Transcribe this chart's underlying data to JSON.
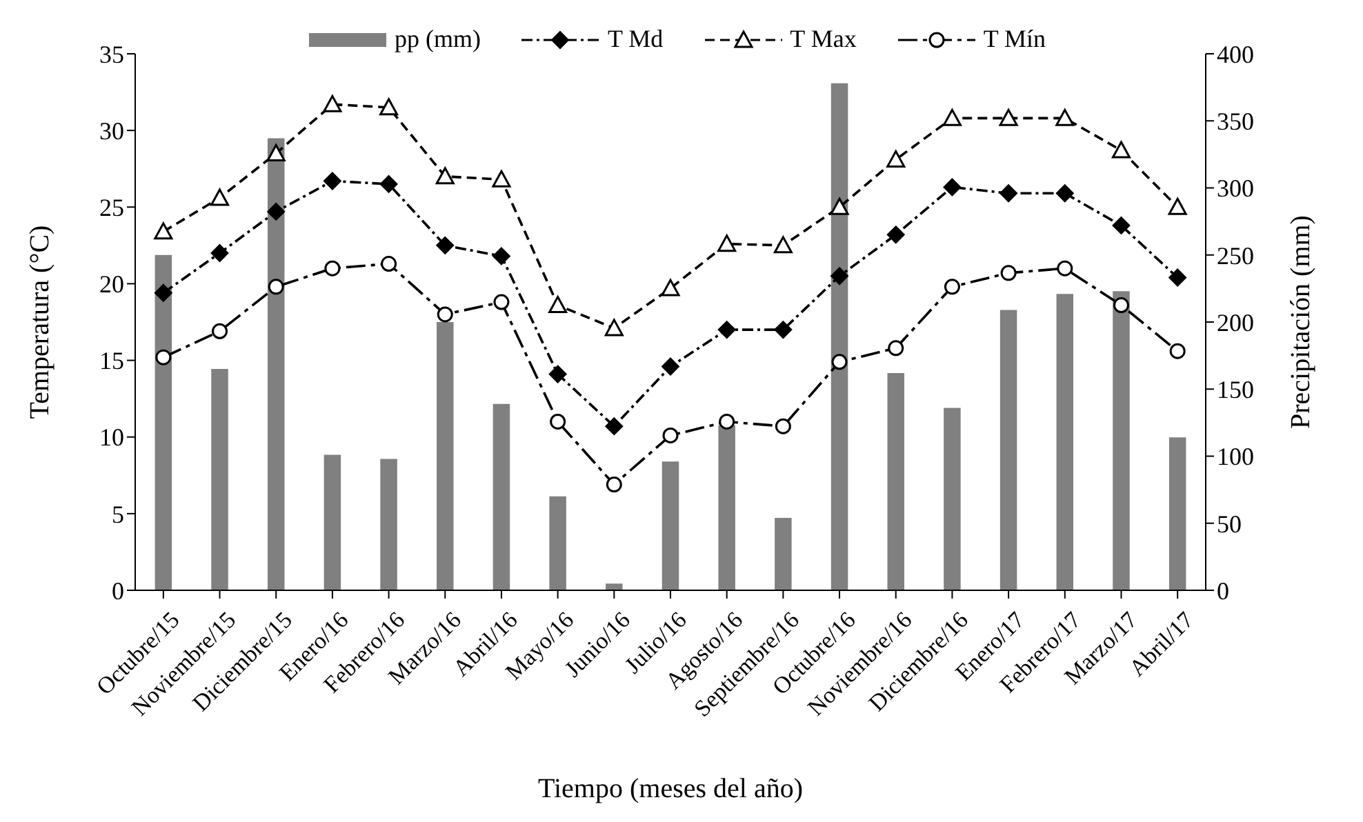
{
  "chart_data": {
    "type": "line",
    "xlabel": "Tiempo (meses del año)",
    "ylabel": "Temperatura (°C)",
    "y2label": "Precipitación (mm)",
    "categories": [
      "Octubre/15",
      "Noviembre/15",
      "Diciembre/15",
      "Enero/16",
      "Febrero/16",
      "Marzo/16",
      "Abril/16",
      "Mayo/16",
      "Junio/16",
      "Julio/16",
      "Agosto/16",
      "Septiembre/16",
      "Octubre/16",
      "Noviembre/16",
      "Diciembre/16",
      "Enero/17",
      "Febrero/17",
      "Marzo/17",
      "Abril/17"
    ],
    "series": [
      {
        "name": "pp (mm)",
        "type": "bar",
        "axis": "y2",
        "color": "#808080",
        "values": [
          250,
          165,
          337,
          101,
          98,
          200,
          139,
          70,
          5,
          96,
          123,
          54,
          378,
          162,
          136,
          209,
          221,
          223,
          114
        ]
      },
      {
        "name": "T Md",
        "color": "#000000",
        "marker": "diamond",
        "line_style": "dashdot",
        "values": [
          19.4,
          22.0,
          24.7,
          26.7,
          26.5,
          22.5,
          21.8,
          14.1,
          10.7,
          14.6,
          17.0,
          17.0,
          20.5,
          23.2,
          26.3,
          25.9,
          25.9,
          23.8,
          20.4
        ]
      },
      {
        "name": "T Max",
        "color": "#000000",
        "marker": "triangle",
        "line_style": "dashed",
        "values": [
          23.4,
          25.6,
          28.5,
          31.7,
          31.5,
          27.0,
          26.8,
          18.6,
          17.1,
          19.7,
          22.6,
          22.5,
          25.0,
          28.1,
          30.8,
          30.8,
          30.8,
          28.7,
          25.0
        ]
      },
      {
        "name": "T Mín",
        "color": "#000000",
        "marker": "circle",
        "line_style": "longdashdot",
        "values": [
          15.2,
          16.9,
          19.8,
          21.0,
          21.3,
          18.0,
          18.8,
          11.0,
          6.9,
          10.1,
          11.0,
          10.7,
          14.9,
          15.8,
          19.8,
          20.7,
          21.0,
          18.6,
          15.6
        ]
      }
    ],
    "ylim": [
      0,
      35
    ],
    "yticks": [
      0,
      5,
      10,
      15,
      20,
      25,
      30,
      35
    ],
    "y2lim": [
      0,
      400
    ],
    "y2ticks": [
      0,
      50,
      100,
      150,
      200,
      250,
      300,
      350,
      400
    ],
    "grid": false,
    "legend": "top"
  }
}
